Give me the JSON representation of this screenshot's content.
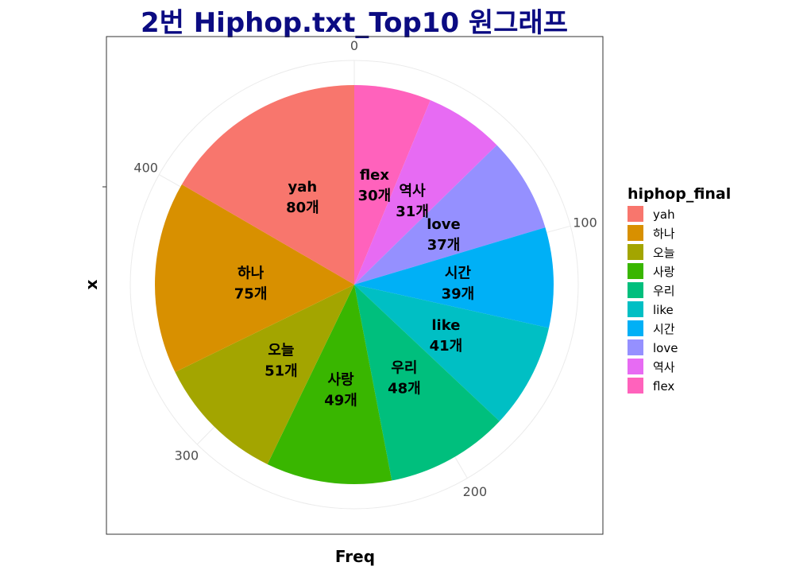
{
  "chart_data": {
    "type": "pie",
    "title": "2번 Hiphop.txt_Top10 원그래프",
    "xlabel": "Freq",
    "ylabel": "x",
    "legend_title": "hiphop_final",
    "legend_position": "right",
    "grid": true,
    "categories": [
      "yah",
      "하나",
      "오늘",
      "사랑",
      "우리",
      "like",
      "시간",
      "love",
      "역사",
      "flex"
    ],
    "values": [
      80,
      75,
      51,
      49,
      48,
      41,
      39,
      37,
      31,
      30
    ],
    "value_suffix": "개",
    "colors": [
      "#F8766D",
      "#D89000",
      "#A3A500",
      "#39B600",
      "#00BF7D",
      "#00BFC4",
      "#00B0F6",
      "#9590FF",
      "#E76BF3",
      "#FF62BC"
    ],
    "angle_ticks": [
      0,
      100,
      200,
      300,
      400
    ],
    "stack_order": [
      "flex",
      "역사",
      "love",
      "시간",
      "like",
      "우리",
      "사랑",
      "오늘",
      "하나",
      "yah"
    ]
  }
}
